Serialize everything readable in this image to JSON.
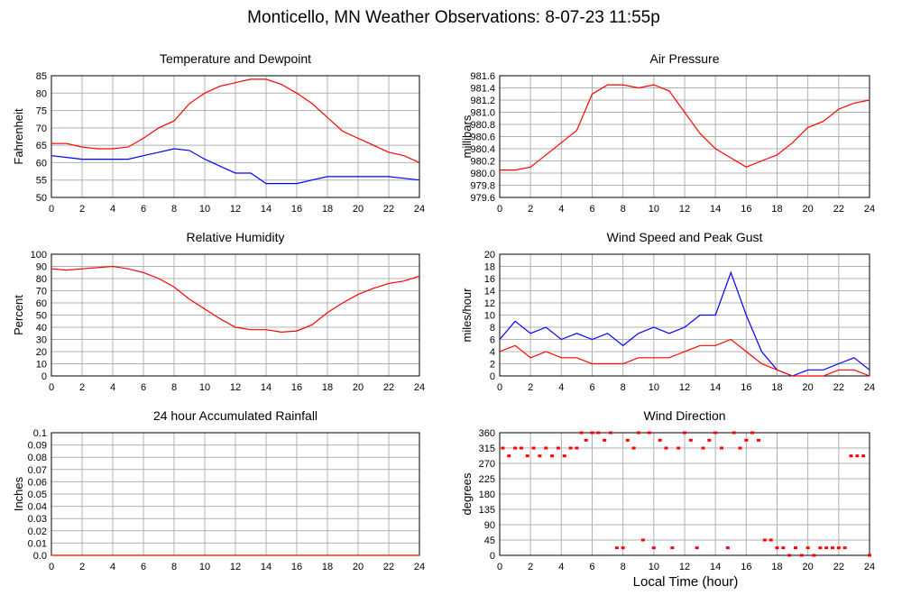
{
  "page": {
    "title": "Monticello, MN Weather Observations: 8-07-23 11:55p",
    "xlabel": "Local Time (hour)"
  },
  "colors": {
    "red": "#ff0000",
    "blue": "#0000ff",
    "grid": "#b0b0b0"
  },
  "chart_data": [
    {
      "id": "temp",
      "type": "line",
      "title": "Temperature and Dewpoint",
      "ylabel": "Fahrenheit",
      "xlabel": "",
      "xlim": [
        0,
        24
      ],
      "ylim": [
        50,
        85
      ],
      "xticks": [
        0,
        2,
        4,
        6,
        8,
        10,
        12,
        14,
        16,
        18,
        20,
        22,
        24
      ],
      "yticks": [
        50,
        55,
        60,
        65,
        70,
        75,
        80,
        85
      ],
      "x": [
        0,
        1,
        2,
        3,
        4,
        5,
        6,
        7,
        8,
        9,
        10,
        11,
        12,
        13,
        14,
        15,
        16,
        17,
        18,
        19,
        20,
        21,
        22,
        23,
        24
      ],
      "series": [
        {
          "color": "#ff0000",
          "values": [
            65.5,
            65.5,
            64.5,
            64,
            64,
            64.5,
            67,
            70,
            72,
            77,
            80,
            82,
            83,
            84,
            84,
            82.5,
            80,
            77,
            73,
            69,
            67,
            65,
            63,
            62,
            60
          ]
        },
        {
          "color": "#0000ff",
          "values": [
            62,
            61.5,
            61,
            61,
            61,
            61,
            62,
            63,
            64,
            63.5,
            61,
            59,
            57,
            57,
            54,
            54,
            54,
            55,
            56,
            56,
            56,
            56,
            56,
            55.5,
            55
          ]
        }
      ]
    },
    {
      "id": "pressure",
      "type": "line",
      "title": "Air Pressure",
      "ylabel": "millibars",
      "xlabel": "",
      "xlim": [
        0,
        24
      ],
      "ylim": [
        979.6,
        981.6
      ],
      "xticks": [
        0,
        2,
        4,
        6,
        8,
        10,
        12,
        14,
        16,
        18,
        20,
        22,
        24
      ],
      "yticks": [
        "979.6",
        "979.8",
        "980.0",
        "980.2",
        "980.4",
        "980.6",
        "980.8",
        "981.0",
        "981.2",
        "981.4",
        "981.6"
      ],
      "x": [
        0,
        1,
        2,
        3,
        4,
        5,
        6,
        7,
        8,
        9,
        10,
        11,
        12,
        13,
        14,
        15,
        16,
        17,
        18,
        19,
        20,
        21,
        22,
        23,
        24
      ],
      "series": [
        {
          "color": "#ff0000",
          "values": [
            980.05,
            980.05,
            980.1,
            980.3,
            980.5,
            980.7,
            981.3,
            981.45,
            981.45,
            981.4,
            981.45,
            981.35,
            981.0,
            980.65,
            980.4,
            980.25,
            980.1,
            980.2,
            980.3,
            980.5,
            980.75,
            980.85,
            981.05,
            981.15,
            981.2
          ]
        }
      ]
    },
    {
      "id": "humidity",
      "type": "line",
      "title": "Relative Humidity",
      "ylabel": "Percent",
      "xlabel": "",
      "xlim": [
        0,
        24
      ],
      "ylim": [
        0,
        100
      ],
      "xticks": [
        0,
        2,
        4,
        6,
        8,
        10,
        12,
        14,
        16,
        18,
        20,
        22,
        24
      ],
      "yticks": [
        0,
        10,
        20,
        30,
        40,
        50,
        60,
        70,
        80,
        90,
        100
      ],
      "x": [
        0,
        1,
        2,
        3,
        4,
        5,
        6,
        7,
        8,
        9,
        10,
        11,
        12,
        13,
        14,
        15,
        16,
        17,
        18,
        19,
        20,
        21,
        22,
        23,
        24
      ],
      "series": [
        {
          "color": "#ff0000",
          "values": [
            88,
            87,
            88,
            89,
            90,
            88,
            85,
            80,
            73,
            63,
            55,
            47,
            40,
            38,
            38,
            36,
            37,
            42,
            52,
            60,
            67,
            72,
            76,
            78,
            82
          ]
        }
      ]
    },
    {
      "id": "wind",
      "type": "line",
      "title": "Wind Speed and Peak Gust",
      "ylabel": "miles/hour",
      "xlabel": "",
      "xlim": [
        0,
        24
      ],
      "ylim": [
        0,
        20
      ],
      "xticks": [
        0,
        2,
        4,
        6,
        8,
        10,
        12,
        14,
        16,
        18,
        20,
        22,
        24
      ],
      "yticks": [
        0,
        2,
        4,
        6,
        8,
        10,
        12,
        14,
        16,
        18,
        20
      ],
      "x": [
        0,
        1,
        2,
        3,
        4,
        5,
        6,
        7,
        8,
        9,
        10,
        11,
        12,
        13,
        14,
        15,
        16,
        17,
        18,
        19,
        20,
        21,
        22,
        23,
        24
      ],
      "series": [
        {
          "color": "#0000ff",
          "values": [
            6,
            9,
            7,
            8,
            6,
            7,
            6,
            7,
            5,
            7,
            8,
            7,
            8,
            10,
            10,
            17,
            10,
            4,
            1,
            0,
            1,
            1,
            2,
            3,
            1
          ]
        },
        {
          "color": "#ff0000",
          "values": [
            4,
            5,
            3,
            4,
            3,
            3,
            2,
            2,
            2,
            3,
            3,
            3,
            4,
            5,
            5,
            6,
            4,
            2,
            1,
            0,
            0,
            0,
            1,
            1,
            0
          ]
        }
      ]
    },
    {
      "id": "rain",
      "type": "line",
      "title": "24 hour Accumulated Rainfall",
      "ylabel": "Inches",
      "xlabel": "",
      "xlim": [
        0,
        24
      ],
      "ylim": [
        0,
        0.1
      ],
      "xticks": [
        0,
        2,
        4,
        6,
        8,
        10,
        12,
        14,
        16,
        18,
        20,
        22,
        24
      ],
      "yticks": [
        "0.0",
        "0.01",
        "0.02",
        "0.03",
        "0.04",
        "0.05",
        "0.06",
        "0.07",
        "0.08",
        "0.09",
        "0.1"
      ],
      "x": [
        0,
        24
      ],
      "series": [
        {
          "color": "#ff0000",
          "values": [
            0,
            0
          ]
        }
      ]
    },
    {
      "id": "direction",
      "type": "scatter",
      "title": "Wind Direction",
      "ylabel": "degrees",
      "xlabel": "",
      "xlim": [
        0,
        24
      ],
      "ylim": [
        0,
        360
      ],
      "xticks": [
        0,
        2,
        4,
        6,
        8,
        10,
        12,
        14,
        16,
        18,
        20,
        22,
        24
      ],
      "yticks": [
        0,
        45,
        90,
        135,
        180,
        225,
        270,
        315,
        360
      ],
      "series": [
        {
          "color": "#ff0000",
          "points": [
            [
              0.2,
              315
            ],
            [
              0.6,
              292
            ],
            [
              1.0,
              315
            ],
            [
              1.4,
              315
            ],
            [
              1.8,
              292
            ],
            [
              2.2,
              315
            ],
            [
              2.6,
              292
            ],
            [
              3.0,
              315
            ],
            [
              3.4,
              292
            ],
            [
              3.8,
              315
            ],
            [
              4.2,
              292
            ],
            [
              4.6,
              315
            ],
            [
              5.0,
              315
            ],
            [
              5.3,
              360
            ],
            [
              5.6,
              338
            ],
            [
              6.0,
              360
            ],
            [
              6.4,
              360
            ],
            [
              6.8,
              338
            ],
            [
              7.2,
              360
            ],
            [
              7.6,
              22
            ],
            [
              8.0,
              22
            ],
            [
              8.3,
              338
            ],
            [
              8.7,
              315
            ],
            [
              9.0,
              360
            ],
            [
              9.3,
              45
            ],
            [
              9.7,
              360
            ],
            [
              10.0,
              22
            ],
            [
              10.4,
              338
            ],
            [
              10.8,
              315
            ],
            [
              11.2,
              22
            ],
            [
              11.6,
              315
            ],
            [
              12.0,
              360
            ],
            [
              12.4,
              338
            ],
            [
              12.8,
              22
            ],
            [
              13.2,
              315
            ],
            [
              13.6,
              338
            ],
            [
              14.0,
              360
            ],
            [
              14.4,
              315
            ],
            [
              14.8,
              22
            ],
            [
              15.2,
              360
            ],
            [
              15.6,
              315
            ],
            [
              16.0,
              338
            ],
            [
              16.4,
              360
            ],
            [
              16.8,
              338
            ],
            [
              17.2,
              45
            ],
            [
              17.6,
              45
            ],
            [
              18.0,
              22
            ],
            [
              18.4,
              22
            ],
            [
              18.8,
              0
            ],
            [
              19.2,
              22
            ],
            [
              19.6,
              0
            ],
            [
              20.0,
              22
            ],
            [
              20.4,
              0
            ],
            [
              20.8,
              22
            ],
            [
              21.2,
              22
            ],
            [
              21.6,
              22
            ],
            [
              22.0,
              22
            ],
            [
              22.4,
              22
            ],
            [
              22.8,
              292
            ],
            [
              23.2,
              292
            ],
            [
              23.6,
              292
            ],
            [
              24.0,
              0
            ]
          ]
        }
      ]
    }
  ]
}
